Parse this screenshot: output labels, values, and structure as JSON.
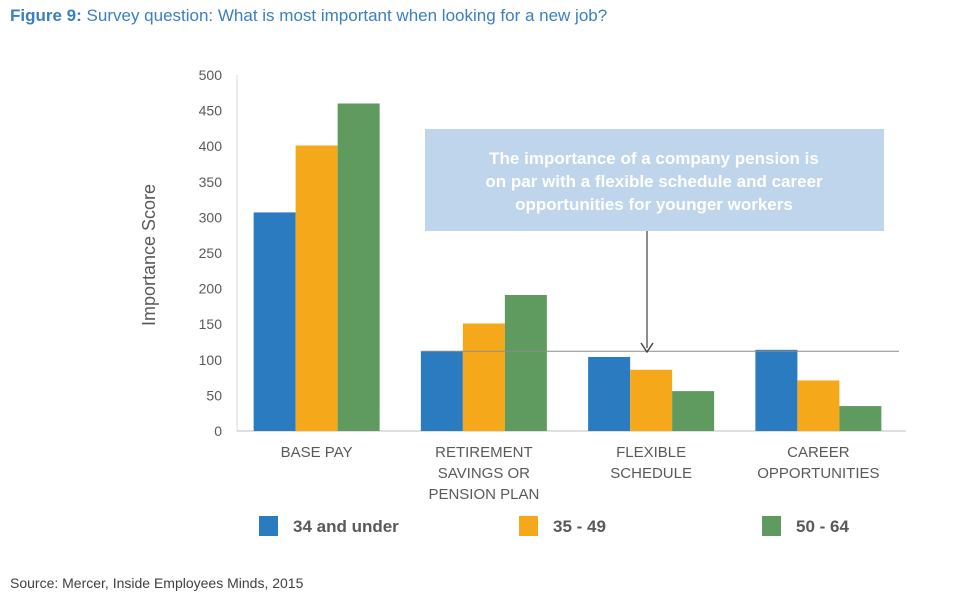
{
  "figure": {
    "lead": "Figure 9:",
    "title": "Survey question: What is most important when looking for a new job?"
  },
  "source": "Source: Mercer, Inside Employees Minds, 2015",
  "callout": {
    "lines": [
      "The importance of a company pension is",
      "on par with a flexible schedule and career",
      "opportunities for younger workers"
    ],
    "reference_value": 112
  },
  "chart_data": {
    "type": "bar",
    "categories": [
      [
        "BASE PAY"
      ],
      [
        "RETIREMENT",
        "SAVINGS OR",
        "PENSION PLAN"
      ],
      [
        "FLEXIBLE",
        "SCHEDULE"
      ],
      [
        "CAREER",
        "OPPORTUNITIES"
      ]
    ],
    "series": [
      {
        "name": "34 and under",
        "color": "#2a7bc0",
        "values": [
          307,
          112,
          104,
          114
        ]
      },
      {
        "name": "35 - 49",
        "color": "#f5a81a",
        "values": [
          401,
          151,
          86,
          71
        ]
      },
      {
        "name": "50 - 64",
        "color": "#5f9a5f",
        "values": [
          460,
          191,
          56,
          35
        ]
      }
    ],
    "ylabel": "Importance Score",
    "xlabel": "",
    "ylim": [
      0,
      500
    ],
    "yticks": [
      0,
      50,
      100,
      150,
      200,
      250,
      300,
      350,
      400,
      450,
      500
    ],
    "legend_position": "bottom",
    "grid": false
  }
}
